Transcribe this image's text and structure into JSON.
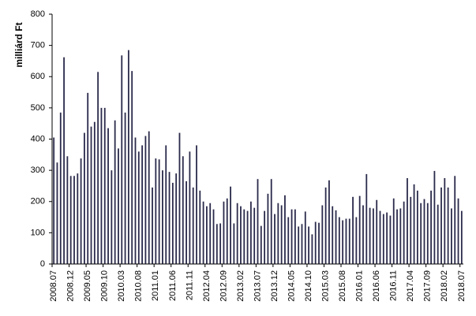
{
  "chart_data": {
    "type": "bar",
    "title": "",
    "xlabel": "",
    "ylabel": "milliárd Ft",
    "ylim": [
      0,
      800
    ],
    "yticks": [
      0,
      100,
      200,
      300,
      400,
      500,
      600,
      700,
      800
    ],
    "grid": false,
    "legend": "none",
    "bar_color": "#2b2b4c",
    "start_period": "2008.07",
    "x_tick_labels": [
      "2008.07",
      "2008.12",
      "2009.05",
      "2009.10",
      "2010.03",
      "2010.08",
      "2011.01",
      "2011.06",
      "2011.11",
      "2012.04",
      "2012.09",
      "2013.02",
      "2013.07",
      "2013.12",
      "2014.05",
      "2014.10",
      "2015.03",
      "2015.08",
      "2016.01",
      "2016.06",
      "2016.11",
      "2017.04",
      "2017.09",
      "2018.02",
      "2018.07"
    ],
    "values": [
      405,
      325,
      485,
      662,
      345,
      282,
      282,
      290,
      338,
      420,
      548,
      440,
      455,
      615,
      500,
      500,
      435,
      300,
      460,
      370,
      668,
      485,
      685,
      618,
      405,
      360,
      380,
      410,
      425,
      245,
      338,
      335,
      300,
      380,
      295,
      260,
      290,
      420,
      345,
      265,
      360,
      245,
      380,
      235,
      200,
      185,
      195,
      175,
      128,
      130,
      200,
      210,
      248,
      130,
      195,
      185,
      175,
      170,
      200,
      180,
      272,
      122,
      170,
      225,
      272,
      160,
      195,
      188,
      220,
      150,
      175,
      175,
      120,
      128,
      168,
      120,
      95,
      135,
      132,
      188,
      245,
      268,
      185,
      172,
      150,
      140,
      145,
      145,
      215,
      150,
      218,
      188,
      288,
      180,
      178,
      205,
      170,
      160,
      165,
      155,
      210,
      175,
      178,
      200,
      275,
      215,
      255,
      235,
      195,
      208,
      195,
      235,
      298,
      190,
      245,
      275,
      245,
      178,
      282,
      210,
      170
    ]
  }
}
